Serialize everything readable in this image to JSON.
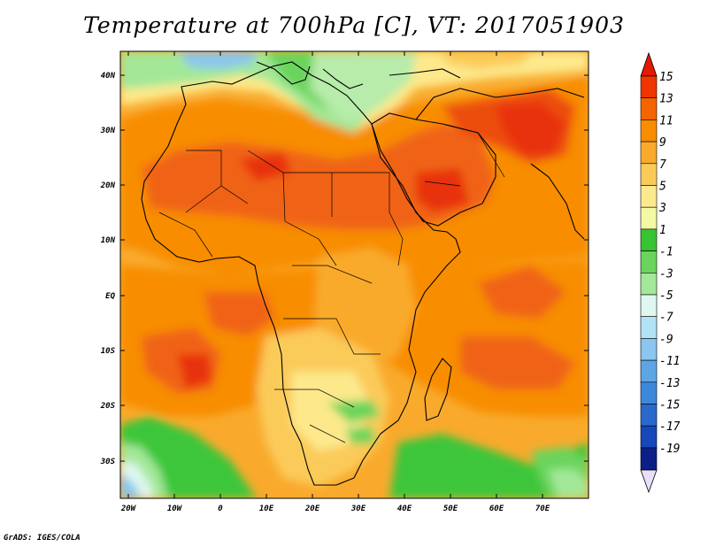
{
  "title": "Temperature at 700hPa [C], VT: 2017051903",
  "credit": "GrADS: IGES/COLA",
  "lon_labels": [
    "20W",
    "10W",
    "0",
    "10E",
    "20E",
    "30E",
    "40E",
    "50E",
    "60E",
    "70E"
  ],
  "lat_labels": [
    "40N",
    "30N",
    "20N",
    "10N",
    "EQ",
    "10S",
    "20S",
    "30S"
  ],
  "legend": {
    "labels": [
      "15",
      "13",
      "11",
      "9",
      "7",
      "5",
      "3",
      "1",
      "-1",
      "-3",
      "-5",
      "-7",
      "-9",
      "-11",
      "-13",
      "-15",
      "-17",
      "-19"
    ],
    "colors": [
      "#f03500",
      "#f46400",
      "#f88d00",
      "#f9aa2c",
      "#fbcb5a",
      "#fde98c",
      "#f4f9a4",
      "#36c432",
      "#6ad45c",
      "#a3e898",
      "#dff7f0",
      "#b2e2f6",
      "#8ac6ee",
      "#5ca6e6",
      "#3c88dc",
      "#2a68cc",
      "#1648ba",
      "#0c1f86"
    ],
    "top_arrow_color": "#e31a00",
    "bottom_arrow_color": "#e8e0fa"
  },
  "colors": {
    "dark_red": "#e8320a",
    "red_orange": "#f06412",
    "orange": "#f88d00",
    "light_orange": "#f9aa2c",
    "yellow": "#fbcb5a",
    "pale_yellow": "#fde98c",
    "green": "#3ec63a",
    "light_green": "#a3e898",
    "light_blue": "#8ac6ee"
  }
}
